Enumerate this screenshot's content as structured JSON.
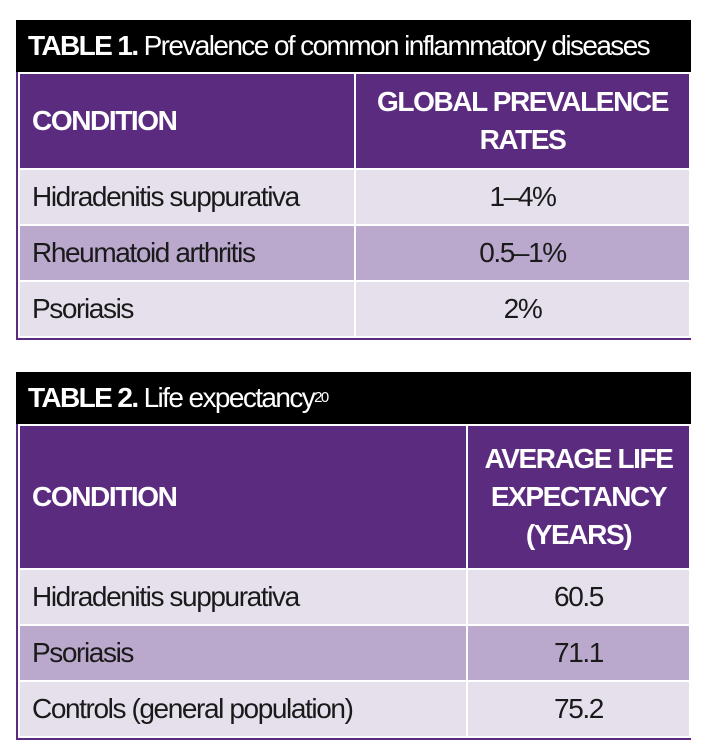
{
  "table1": {
    "title_label": "TABLE 1.",
    "title_text": "Prevalence of common inflammatory diseases",
    "columns": [
      "CONDITION",
      "GLOBAL PREVALENCE RATES"
    ],
    "rows": [
      {
        "condition": "Hidradenitis suppurativa",
        "value": "1–4%"
      },
      {
        "condition": "Rheumatoid arthritis",
        "value": "0.5–1%"
      },
      {
        "condition": "Psoriasis",
        "value": "2%"
      }
    ]
  },
  "table2": {
    "title_label": "TABLE 2.",
    "title_text": "Life expectancy",
    "title_superscript": "20",
    "columns": [
      "CONDITION",
      "AVERAGE LIFE EXPECTANCY (YEARS)"
    ],
    "rows": [
      {
        "condition": "Hidradenitis suppurativa",
        "value": "60.5"
      },
      {
        "condition": "Psoriasis",
        "value": "71.1"
      },
      {
        "condition": "Controls (general population)",
        "value": "75.2"
      }
    ]
  },
  "colors": {
    "header_purple": "#5b2b80",
    "row_light": "#e6dfec",
    "row_dark": "#bba9cd",
    "title_bar": "#000000"
  }
}
